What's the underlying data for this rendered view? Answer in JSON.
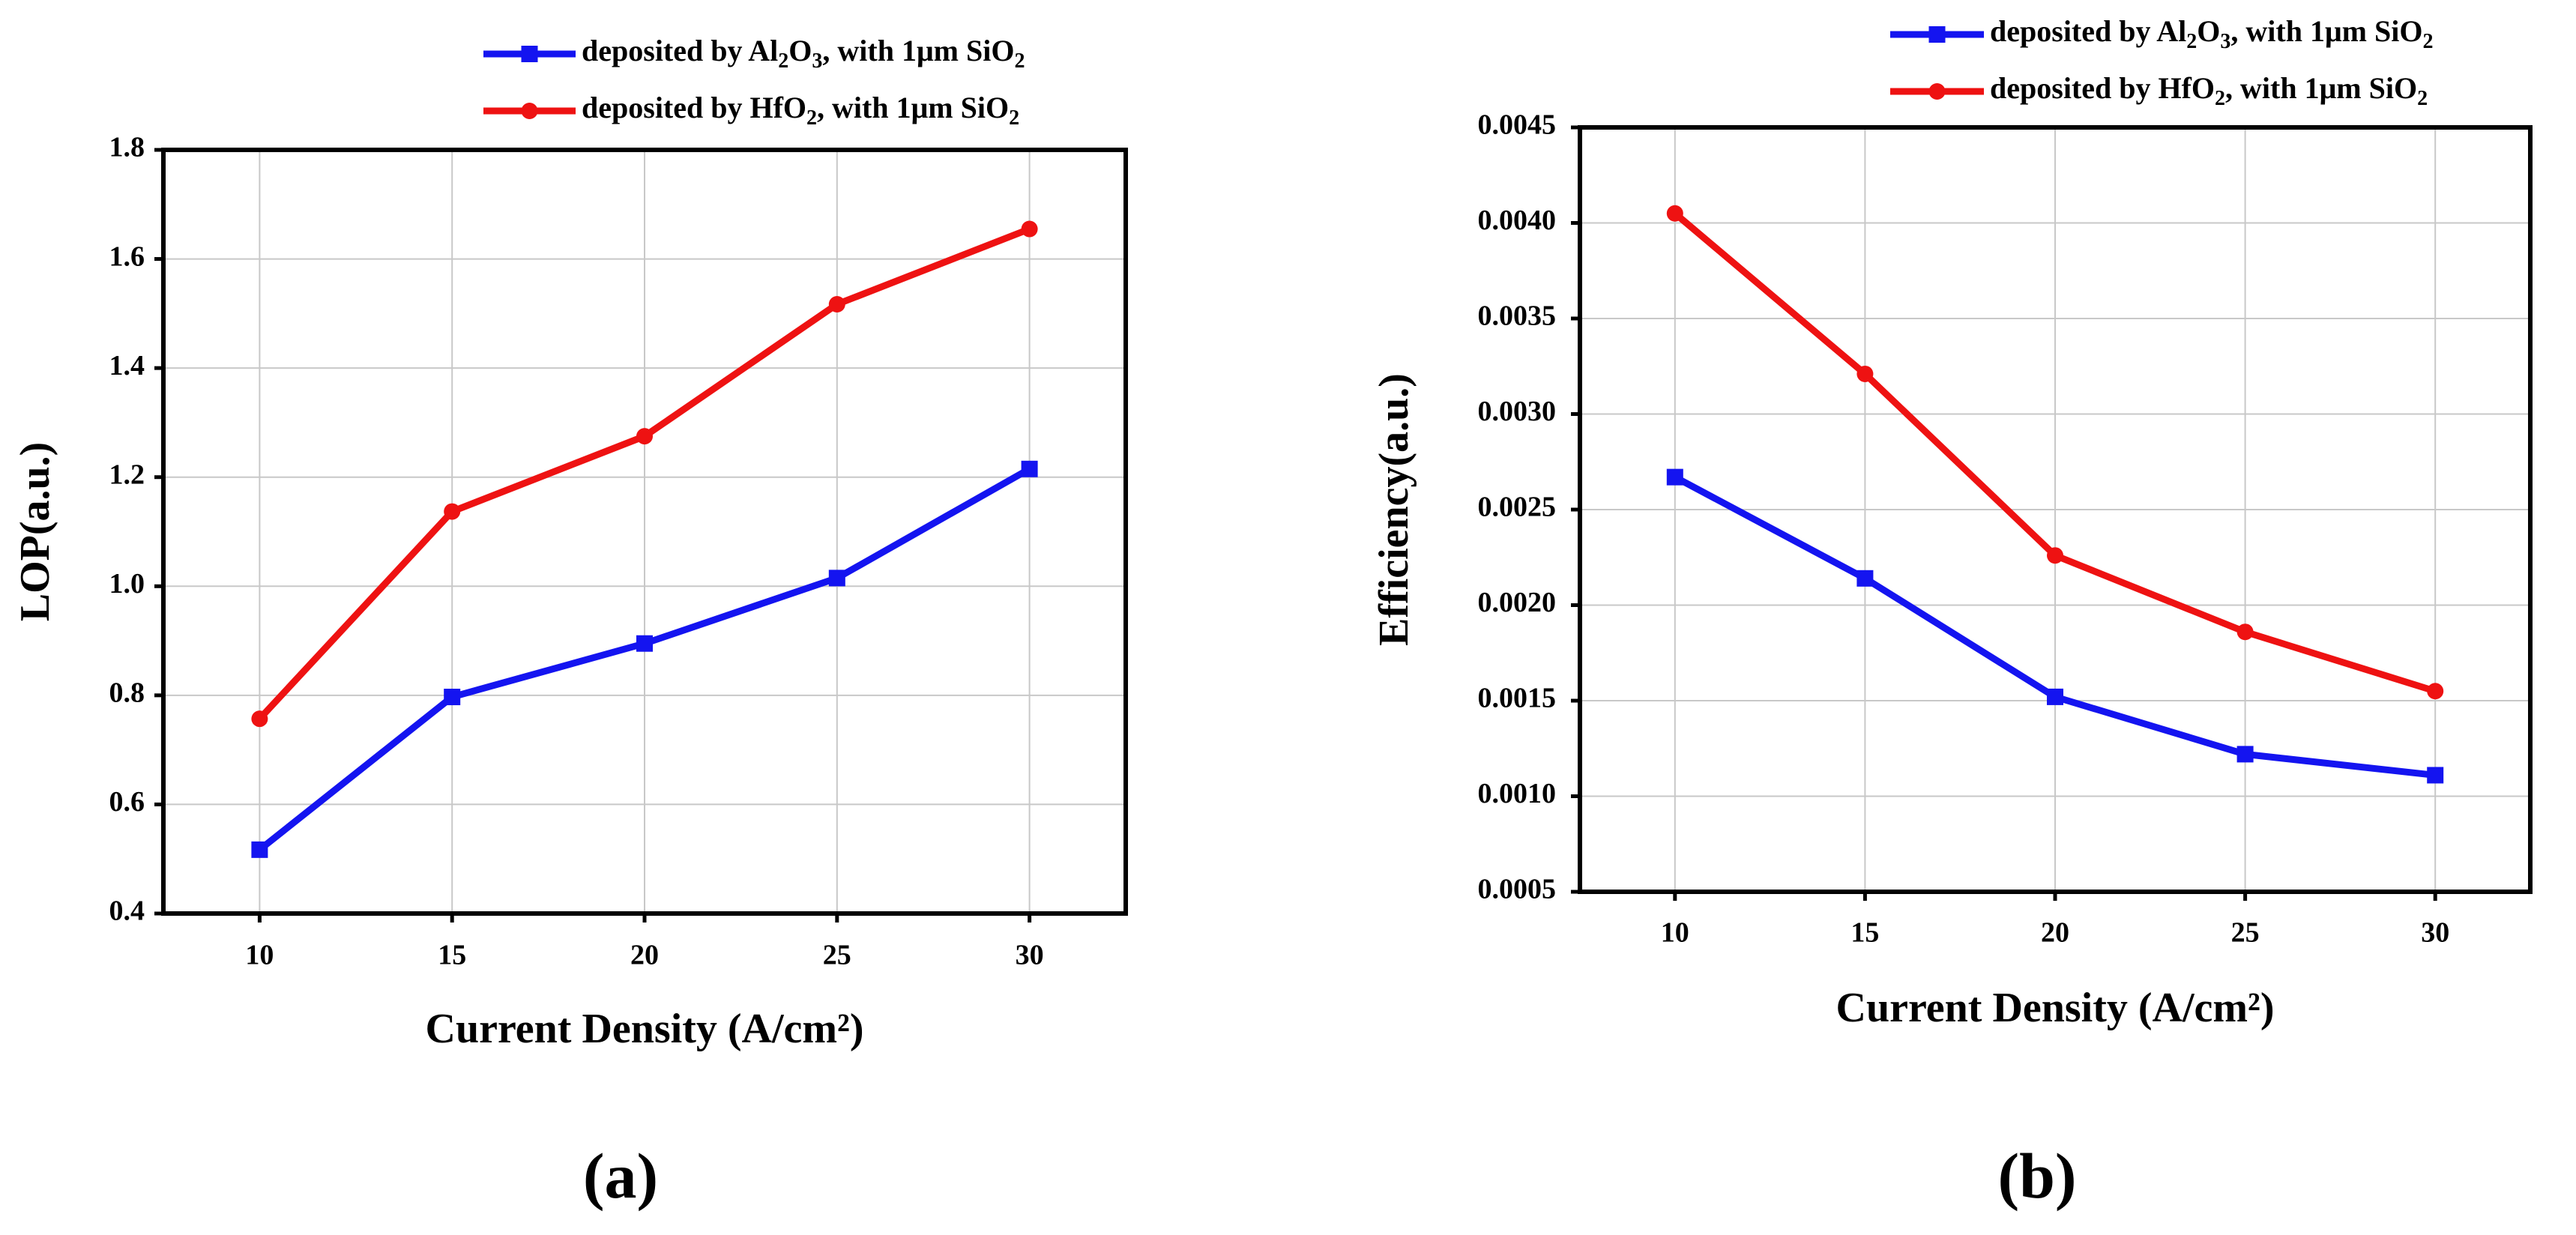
{
  "chart_data": [
    {
      "panel": "(a)",
      "type": "line",
      "title": "",
      "xlabel": "Current Density (A/cm²)",
      "ylabel": "LOP(a.u.)",
      "x": [
        10,
        15,
        20,
        25,
        30
      ],
      "xlim": [
        7.5,
        32.5
      ],
      "ylim": [
        0.4,
        1.8
      ],
      "xticks": [
        "10",
        "15",
        "20",
        "25",
        "30"
      ],
      "yticks": [
        "0.4",
        "0.6",
        "0.8",
        "1.0",
        "1.2",
        "1.4",
        "1.6",
        "1.8"
      ],
      "grid": true,
      "legend_position": "top-right",
      "series": [
        {
          "name": "deposited by Al2O3, with 1μm SiO2",
          "legend": {
            "pre": "deposited by Al",
            "s1": "2",
            "mid": "O",
            "s2": "3",
            "post": ", with 1μm SiO",
            "s3": "2"
          },
          "color": "#1414f0",
          "marker": "square",
          "values": [
            0.517,
            0.797,
            0.895,
            1.015,
            1.215
          ]
        },
        {
          "name": "deposited by HfO2, with 1μm SiO2",
          "legend": {
            "pre": "deposited by HfO",
            "s1": "2",
            "mid": "",
            "s2": "",
            "post": ", with 1μm SiO",
            "s3": "2"
          },
          "color": "#ee1212",
          "marker": "circle",
          "values": [
            0.757,
            1.137,
            1.275,
            1.517,
            1.655
          ]
        }
      ]
    },
    {
      "panel": "(b)",
      "type": "line",
      "title": "",
      "xlabel": "Current Density (A/cm²)",
      "ylabel": "Efficiency(a.u.)",
      "x": [
        10,
        15,
        20,
        25,
        30
      ],
      "xlim": [
        7.5,
        32.5
      ],
      "ylim": [
        0.0005,
        0.0045
      ],
      "xticks": [
        "10",
        "15",
        "20",
        "25",
        "30"
      ],
      "yticks": [
        "0.0005",
        "0.0010",
        "0.0015",
        "0.0020",
        "0.0025",
        "0.0030",
        "0.0035",
        "0.0040",
        "0.0045"
      ],
      "grid": true,
      "legend_position": "top-right",
      "series": [
        {
          "name": "deposited by Al2O3, with 1μm SiO2",
          "legend": {
            "pre": "deposited by Al",
            "s1": "2",
            "mid": "O",
            "s2": "3",
            "post": ", with 1μm SiO",
            "s3": "2"
          },
          "color": "#1414f0",
          "marker": "square",
          "values": [
            0.00267,
            0.00214,
            0.00152,
            0.00122,
            0.00111
          ]
        },
        {
          "name": "deposited by HfO2, with 1μm SiO2",
          "legend": {
            "pre": "deposited by HfO",
            "s1": "2",
            "mid": "",
            "s2": "",
            "post": ", with 1μm SiO",
            "s3": "2"
          },
          "color": "#ee1212",
          "marker": "circle",
          "values": [
            0.00405,
            0.00321,
            0.00226,
            0.00186,
            0.00155
          ]
        }
      ]
    }
  ]
}
